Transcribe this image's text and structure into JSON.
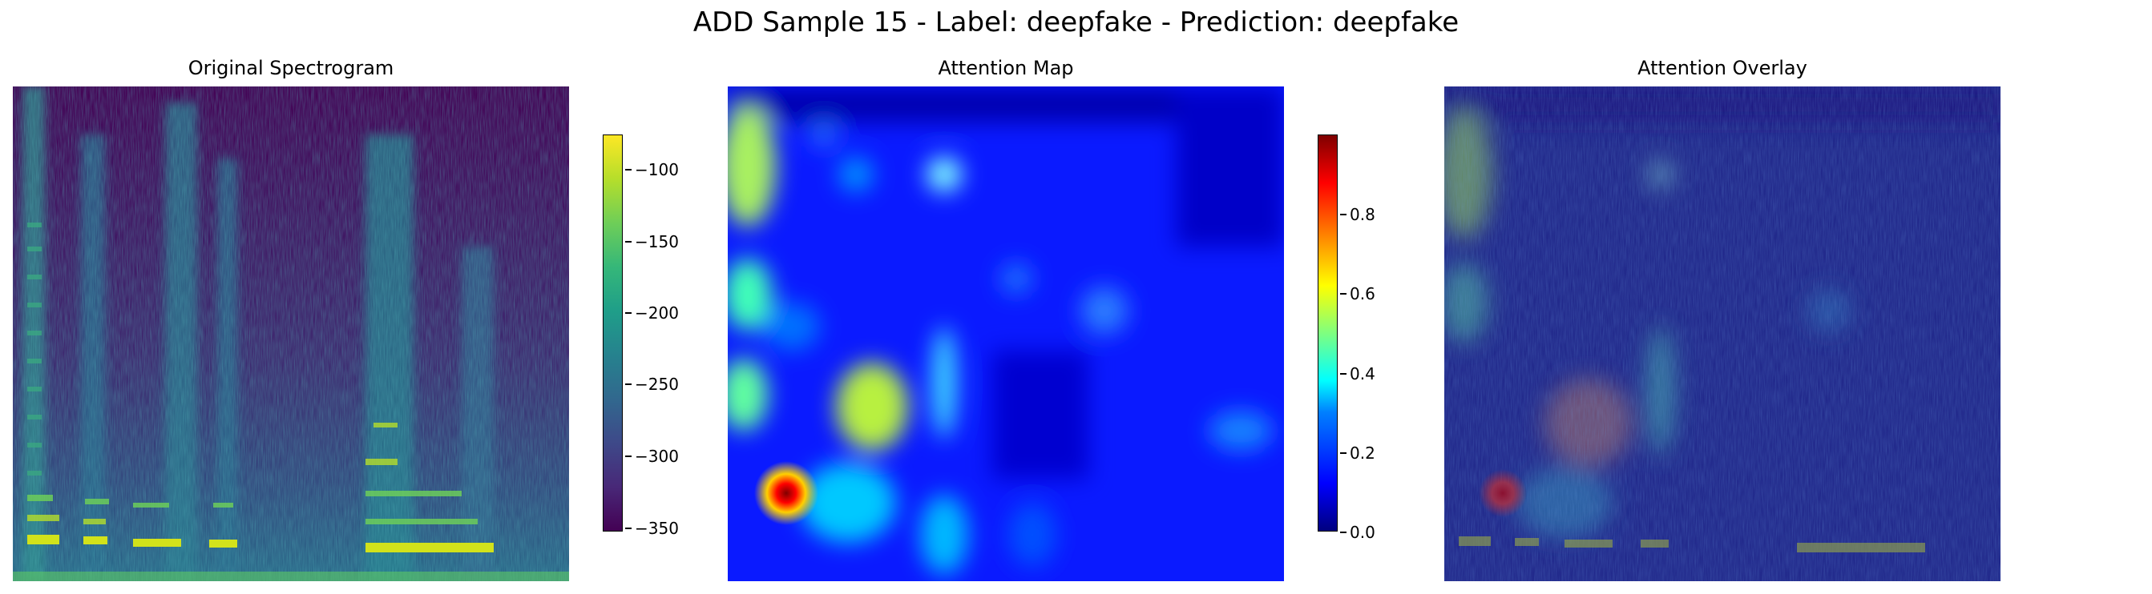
{
  "suptitle": "ADD Sample 15 - Label: deepfake - Prediction: deepfake",
  "panels": [
    {
      "title": "Original Spectrogram"
    },
    {
      "title": "Attention Map"
    },
    {
      "title": "Attention Overlay"
    }
  ],
  "colorbars": {
    "spectrogram": {
      "colormap": "viridis",
      "range": [
        -355,
        -75
      ],
      "ticks": [
        "−100",
        "−150",
        "−200",
        "−250",
        "−300",
        "−350"
      ]
    },
    "attention": {
      "colormap": "jet",
      "range": [
        0.0,
        1.0
      ],
      "ticks": [
        "0.8",
        "0.6",
        "0.4",
        "0.2",
        "0.0"
      ]
    }
  },
  "chart_data": [
    {
      "type": "heatmap",
      "title": "Original Spectrogram",
      "colormap": "viridis",
      "value_range": [
        -355,
        -75
      ],
      "axes": "off",
      "colorbar_ticks": [
        -100,
        -150,
        -200,
        -250,
        -300,
        -350
      ]
    },
    {
      "type": "heatmap",
      "title": "Attention Map",
      "colormap": "jet",
      "value_range": [
        0.0,
        1.0
      ],
      "axes": "off",
      "colorbar_ticks": [
        0.0,
        0.2,
        0.4,
        0.6,
        0.8
      ],
      "peak_value": 1.0
    },
    {
      "type": "heatmap",
      "title": "Attention Overlay",
      "colormap": "jet over viridis",
      "axes": "off"
    }
  ]
}
